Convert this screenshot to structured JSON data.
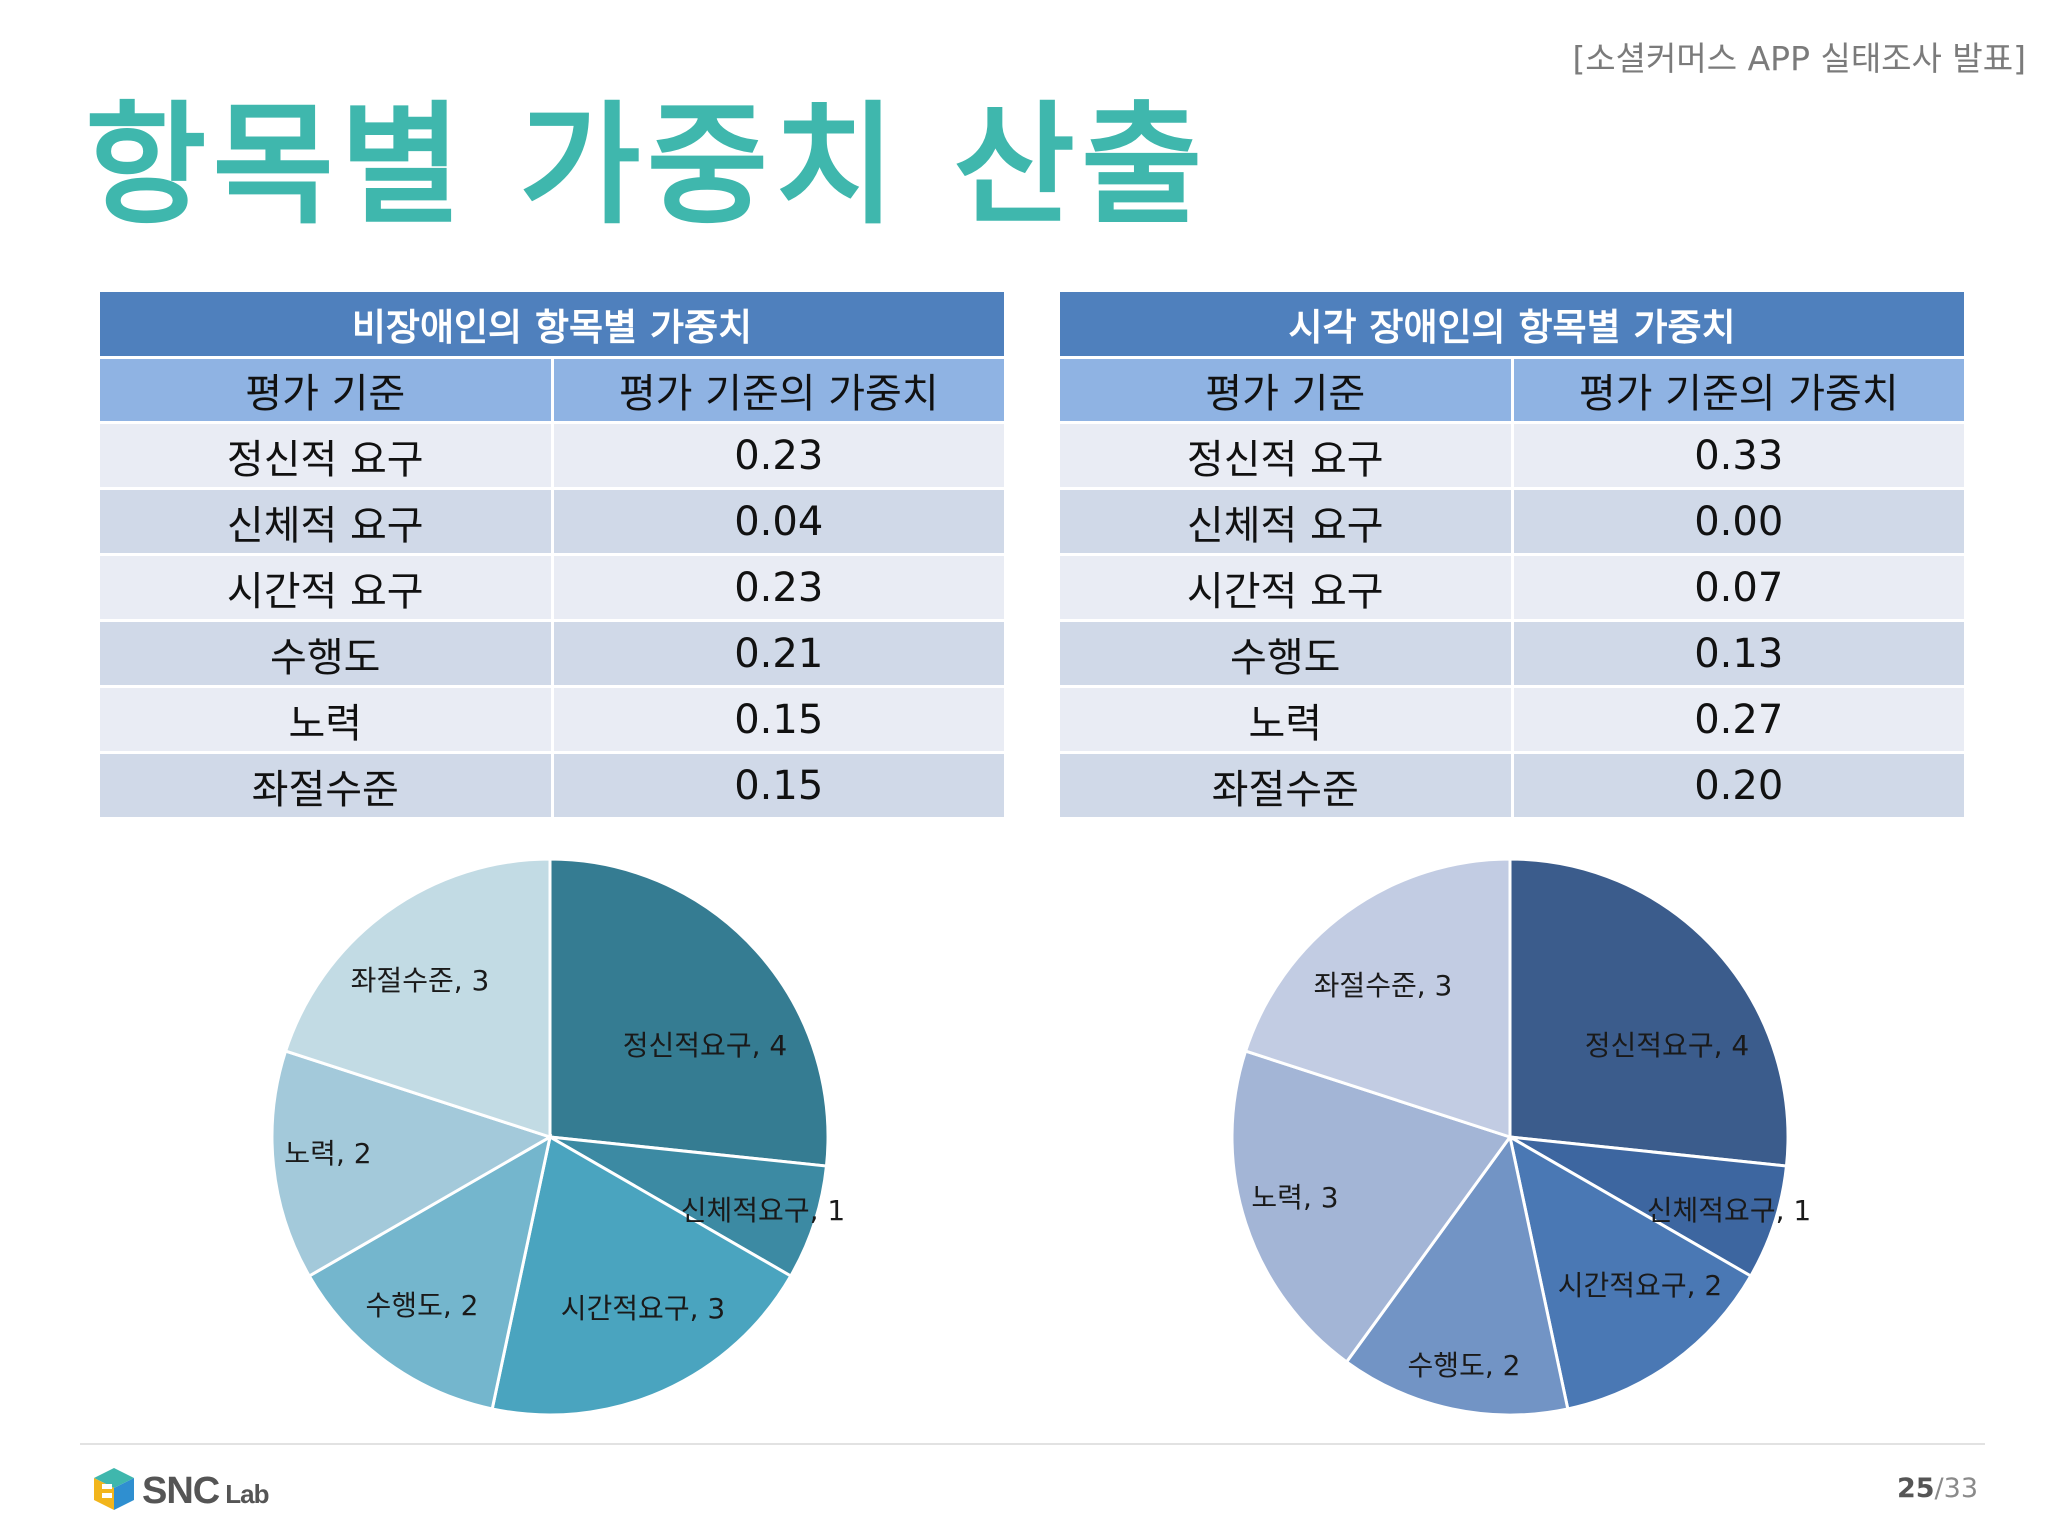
{
  "header_tag": "[소셜커머스 APP 실태조사 발표]",
  "title": "항목별 가중치 산출",
  "left_table": {
    "caption": "비장애인의 항목별 가중치",
    "col1": "평가 기준",
    "col2": "평가 기준의 가중치",
    "rows": [
      {
        "criterion": "정신적 요구",
        "weight": "0.23"
      },
      {
        "criterion": "신체적 요구",
        "weight": "0.04"
      },
      {
        "criterion": "시간적 요구",
        "weight": "0.23"
      },
      {
        "criterion": "수행도",
        "weight": "0.21"
      },
      {
        "criterion": "노력",
        "weight": "0.15"
      },
      {
        "criterion": "좌절수준",
        "weight": "0.15"
      }
    ]
  },
  "right_table": {
    "caption": "시각 장애인의 항목별 가중치",
    "col1": "평가 기준",
    "col2": "평가 기준의 가중치",
    "rows": [
      {
        "criterion": "정신적 요구",
        "weight": "0.33"
      },
      {
        "criterion": "신체적 요구",
        "weight": "0.00"
      },
      {
        "criterion": "시간적 요구",
        "weight": "0.07"
      },
      {
        "criterion": "수행도",
        "weight": "0.13"
      },
      {
        "criterion": "노력",
        "weight": "0.27"
      },
      {
        "criterion": "좌절수준",
        "weight": "0.20"
      }
    ]
  },
  "chart_data": [
    {
      "type": "pie",
      "categories": [
        "정신적요구",
        "신체적요구",
        "시간적요구",
        "수행도",
        "노력",
        "좌절수준"
      ],
      "values": [
        4,
        1,
        3,
        2,
        2,
        3
      ],
      "labels": [
        "정신적요구, 4",
        "신체적요구, 1",
        "시간적요구, 3",
        "수행도, 2",
        "노력, 2",
        "좌절수준, 3"
      ],
      "colors": [
        "#357c92",
        "#3c8aa3",
        "#4aa4bf",
        "#74b6cd",
        "#a3c9da",
        "#c2dbe4"
      ]
    },
    {
      "type": "pie",
      "categories": [
        "정신적요구",
        "신체적요구",
        "시간적요구",
        "수행도",
        "노력",
        "좌절수준"
      ],
      "values": [
        4,
        1,
        2,
        2,
        3,
        3
      ],
      "labels": [
        "정신적요구, 4",
        "신체적요구, 1",
        "시간적요구, 2",
        "수행도, 2",
        "노력, 3",
        "좌절수준, 3"
      ],
      "colors": [
        "#3b5c8c",
        "#3d66a0",
        "#4a78b4",
        "#7294c5",
        "#a3b5d6",
        "#c2cce3"
      ]
    }
  ],
  "footer": {
    "logo_main": "SNC",
    "logo_sub": "Lab",
    "page_current": "25",
    "page_total": "/33"
  }
}
